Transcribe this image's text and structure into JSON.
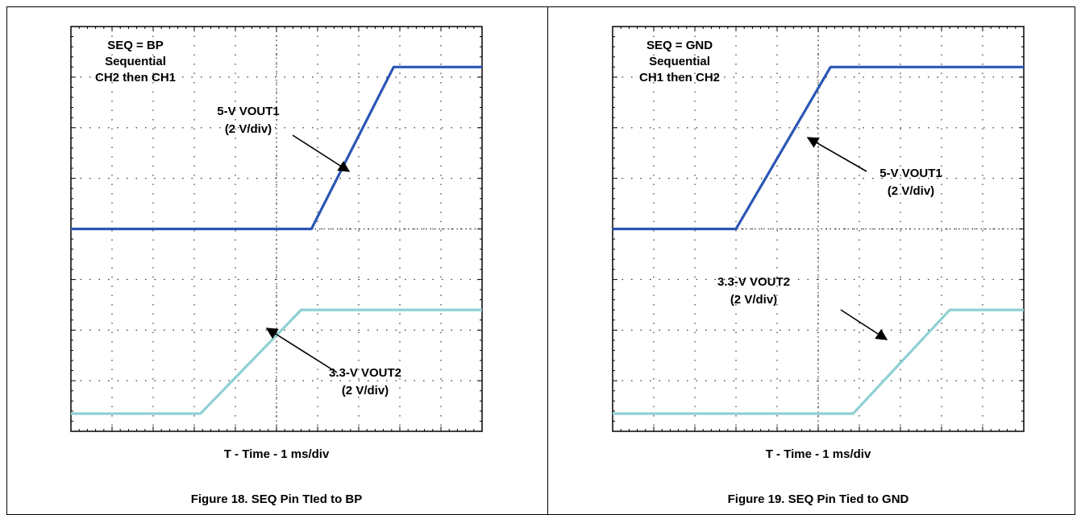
{
  "chart_data": [
    {
      "type": "line",
      "figure_caption": "Figure 18. SEQ Pin TIed to BP",
      "xlabel": "T - Time - 1 ms/div",
      "xlim": [
        0,
        10
      ],
      "ylim": [
        -4,
        4
      ],
      "grid": true,
      "annotation_lines": [
        "SEQ = BP",
        "Sequential",
        "CH2 then CH1"
      ],
      "series": [
        {
          "name": "5-V VOUT1",
          "label_lines": [
            "5-V VOUT1",
            "(2 V/div)"
          ],
          "color": "#2a56b5",
          "x": [
            0,
            5.85,
            7.85,
            10
          ],
          "y": [
            0,
            0,
            3.2,
            3.2
          ]
        },
        {
          "name": "3.3-V VOUT2",
          "label_lines": [
            "3.3-V VOUT2",
            "(2 V/div)"
          ],
          "color": "#8fd0d4",
          "x": [
            0,
            3.15,
            5.6,
            10
          ],
          "y": [
            -3.65,
            -3.65,
            -1.6,
            -1.6
          ]
        }
      ]
    },
    {
      "type": "line",
      "figure_caption": "Figure 19. SEQ Pin Tied to GND",
      "xlabel": "T - Time - 1 ms/div",
      "xlim": [
        0,
        10
      ],
      "ylim": [
        -4,
        4
      ],
      "grid": true,
      "annotation_lines": [
        "SEQ = GND",
        "Sequential",
        "CH1 then CH2"
      ],
      "series": [
        {
          "name": "5-V VOUT1",
          "label_lines": [
            "5-V VOUT1",
            "(2 V/div)"
          ],
          "color": "#2a56b5",
          "x": [
            0,
            3.0,
            5.3,
            10
          ],
          "y": [
            0,
            0,
            3.2,
            3.2
          ]
        },
        {
          "name": "3.3-V VOUT2",
          "label_lines": [
            "3.3-V VOUT2",
            "(2 V/div)"
          ],
          "color": "#8fd0d4",
          "x": [
            0,
            5.85,
            8.2,
            10
          ],
          "y": [
            -3.65,
            -3.65,
            -1.6,
            -1.6
          ]
        }
      ]
    }
  ]
}
